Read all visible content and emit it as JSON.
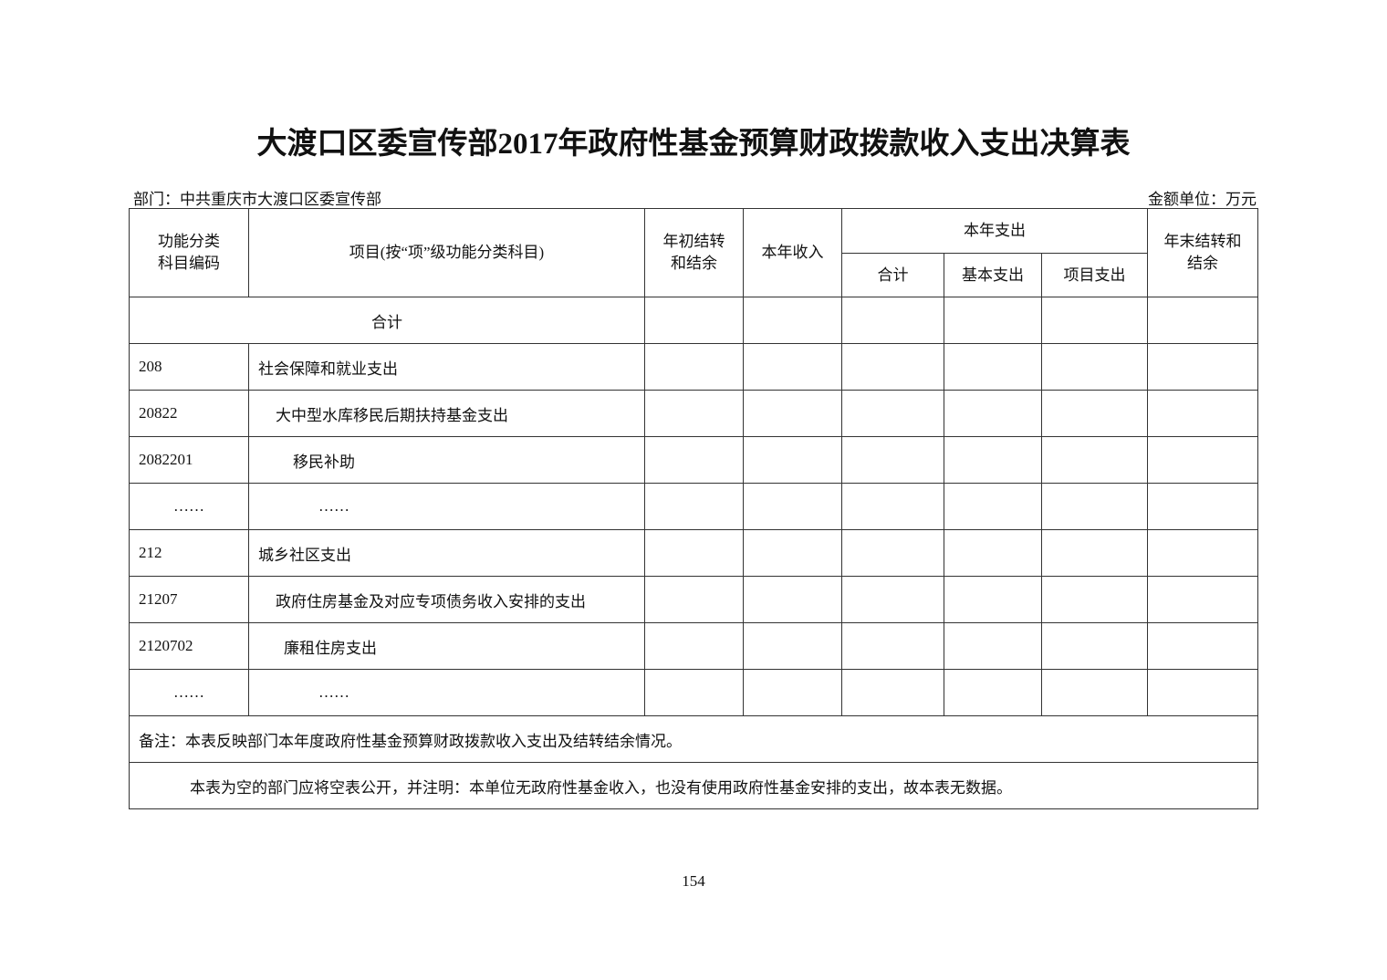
{
  "title": "大渡口区委宣传部2017年政府性基金预算财政拨款收入支出决算表",
  "department": "部门：中共重庆市大渡口区委宣传部",
  "unit": "金额单位：万元",
  "headers": {
    "code": "功能分类\n科目编码",
    "item": "项目(按“项”级功能分类科目)",
    "begin": "年初结转\n和结余",
    "income": "本年收入",
    "expense": "本年支出",
    "total": "合计",
    "basic": "基本支出",
    "project": "项目支出",
    "end": "年末结转和\n结余"
  },
  "total_label": "合计",
  "rows": [
    {
      "code": "208",
      "name": "社会保障和就业支出"
    },
    {
      "code": "20822",
      "name": "大中型水库移民后期扶持基金支出"
    },
    {
      "code": "2082201",
      "name": "移民补助"
    },
    {
      "code": "……",
      "name": "……"
    },
    {
      "code": "212",
      "name": "城乡社区支出"
    },
    {
      "code": "21207",
      "name": "政府住房基金及对应专项债务收入安排的支出"
    },
    {
      "code": "2120702",
      "name": "廉租住房支出"
    },
    {
      "code": "……",
      "name": "……"
    }
  ],
  "note1": "备注：本表反映部门本年度政府性基金预算财政拨款收入支出及结转结余情况。",
  "note2": "本表为空的部门应将空表公开，并注明：本单位无政府性基金收入，也没有使用政府性基金安排的支出，故本表无数据。",
  "page_number": "154"
}
